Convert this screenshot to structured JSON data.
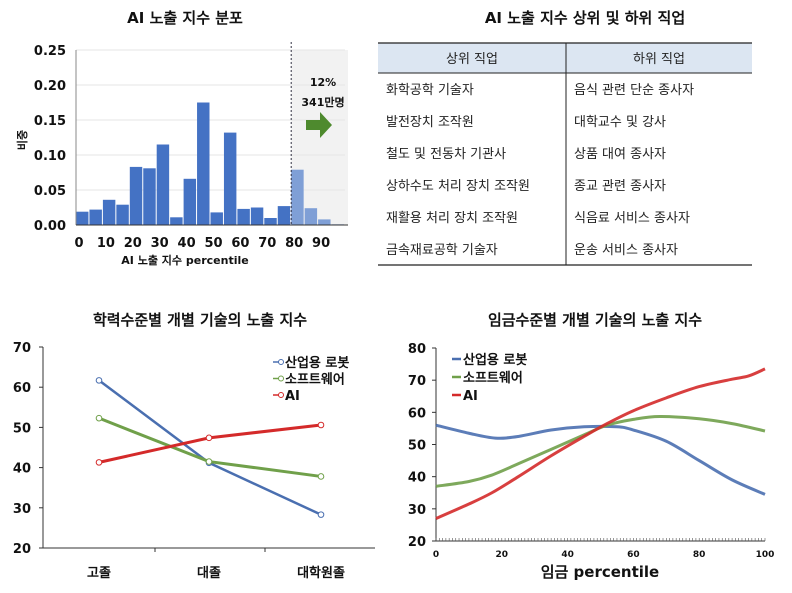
{
  "chart_data": [
    {
      "type": "bar",
      "title": "AI 노출 지수 분포",
      "xlabel": "AI 노출 지수 percentile",
      "ylabel": "비중",
      "xlim": [
        0,
        100
      ],
      "ylim": [
        0,
        0.25
      ],
      "yticks": [
        "0.00",
        "0.05",
        "0.10",
        "0.15",
        "0.20",
        "0.25"
      ],
      "xticks": [
        "0",
        "10",
        "20",
        "30",
        "40",
        "50",
        "60",
        "70",
        "80",
        "90"
      ],
      "bin_width": 5,
      "bin_starts": [
        0,
        5,
        10,
        15,
        20,
        25,
        30,
        35,
        40,
        45,
        50,
        55,
        60,
        65,
        70,
        75,
        80,
        85,
        90,
        95
      ],
      "values": [
        0.019,
        0.022,
        0.036,
        0.029,
        0.083,
        0.081,
        0.115,
        0.011,
        0.066,
        0.175,
        0.018,
        0.132,
        0.023,
        0.025,
        0.01,
        0.027,
        0.079,
        0.024,
        0.008,
        0.001
      ],
      "highlight_from": 80,
      "annotation": {
        "share": "12%",
        "count": "341만명"
      },
      "colors": {
        "bar": "#4472c4",
        "bar_highlight": "#7f9fd6",
        "shade": "#f2f2f2",
        "arrow": "#4e8a2e"
      },
      "grid": true
    },
    {
      "type": "line",
      "title": "학력수준별 개별 기술의 노출 지수",
      "categories": [
        "고졸",
        "대졸",
        "대학원졸"
      ],
      "ylim": [
        20,
        70
      ],
      "yticks": [
        "20",
        "30",
        "40",
        "50",
        "60",
        "70"
      ],
      "legend": "top-right",
      "series": [
        {
          "name": "산업용 로봇",
          "values": [
            61.7,
            41.2,
            28.3
          ],
          "color": "#4a6fb0"
        },
        {
          "name": "소프트웨어",
          "values": [
            52.3,
            41.5,
            37.8
          ],
          "color": "#70a04a"
        },
        {
          "name": "AI",
          "values": [
            41.3,
            47.4,
            50.6
          ],
          "color": "#d42a2a"
        }
      ]
    },
    {
      "type": "line",
      "title": "임금수준별 개별 기술의 노출 지수",
      "xlabel": "임금 percentile",
      "xlim": [
        0,
        100
      ],
      "ylim": [
        20,
        80
      ],
      "xticks": [
        "0",
        "20",
        "40",
        "60",
        "80",
        "100"
      ],
      "yticks": [
        "20",
        "30",
        "40",
        "50",
        "60",
        "70",
        "80"
      ],
      "legend": "top-left",
      "series": [
        {
          "name": "산업용 로봇",
          "color": "#4a6fb0",
          "x": [
            0,
            10,
            18,
            25,
            35,
            45,
            55,
            60,
            70,
            80,
            90,
            100
          ],
          "y": [
            56,
            53.5,
            52,
            52.5,
            54.5,
            55.5,
            55.5,
            54.5,
            51,
            45,
            39,
            34.5
          ]
        },
        {
          "name": "소프트웨어",
          "color": "#70a04a",
          "x": [
            0,
            10,
            17,
            25,
            35,
            45,
            52,
            60,
            68,
            80,
            90,
            100
          ],
          "y": [
            37,
            38.5,
            40.5,
            44,
            48.5,
            53,
            56,
            57.8,
            58.7,
            58,
            56.5,
            54.2
          ]
        },
        {
          "name": "AI",
          "color": "#d42a2a",
          "x": [
            0,
            10,
            17,
            25,
            35,
            45,
            52,
            60,
            70,
            80,
            90,
            95,
            100
          ],
          "y": [
            27,
            31.5,
            35,
            40,
            46.5,
            52.5,
            56.5,
            60.5,
            64.5,
            68,
            70.3,
            71.3,
            73.5
          ]
        }
      ]
    }
  ],
  "table": {
    "title": "AI 노출 지수 상위 및 하위 직업",
    "headers": [
      "상위 직업",
      "하위 직업"
    ],
    "header_bg": "#dce6f2",
    "rows": [
      [
        "화학공학 기술자",
        "음식 관련 단순 종사자"
      ],
      [
        "발전장치 조작원",
        "대학교수 및 강사"
      ],
      [
        "철도 및 전동차 기관사",
        "상품 대여 종사자"
      ],
      [
        "상하수도 처리 장치 조작원",
        "종교 관련 종사자"
      ],
      [
        "재활용 처리 장치 조작원",
        "식음료 서비스 종사자"
      ],
      [
        "금속재료공학 기술자",
        "운송 서비스 종사자"
      ]
    ]
  }
}
